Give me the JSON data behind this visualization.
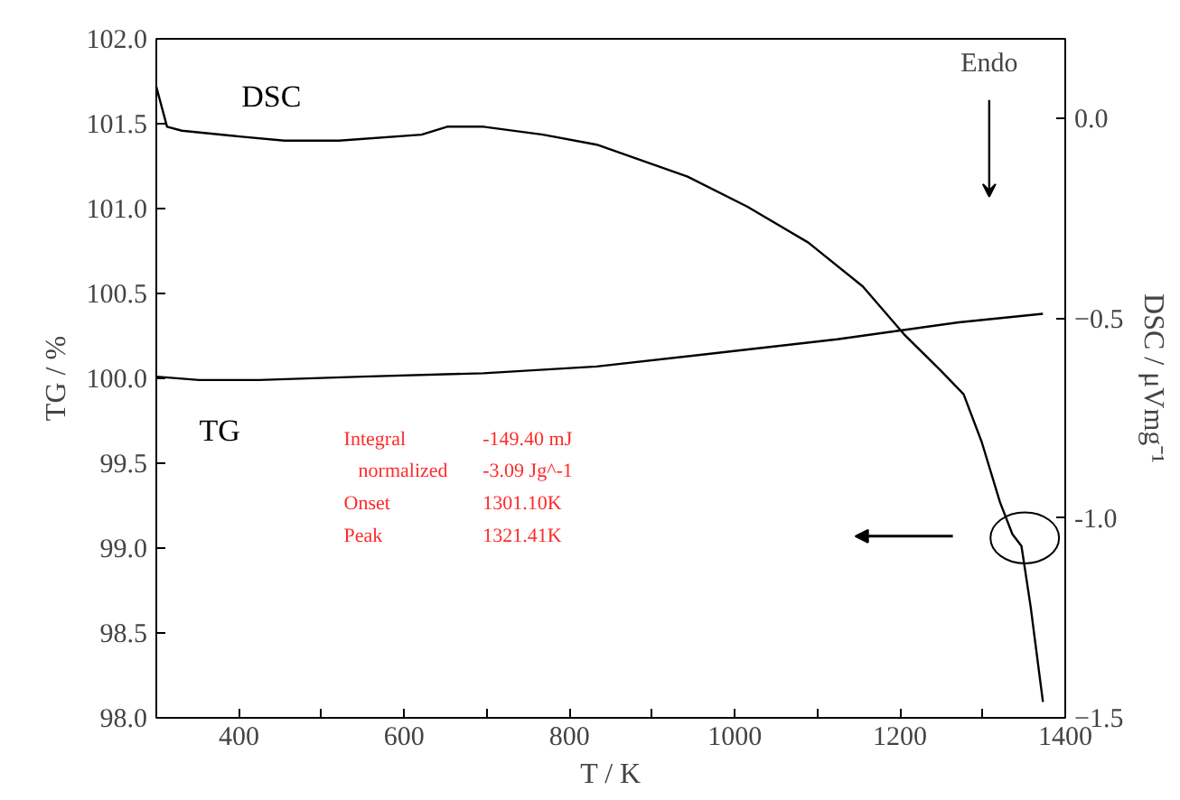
{
  "chart_data": {
    "type": "line",
    "xlabel": "T / K",
    "ylabel": "TG / %",
    "y2label": "DSC / μVmg⁻¹",
    "xlim": [
      300,
      1400
    ],
    "xticks": [
      400,
      {
        "value": 500,
        "label": null
      },
      600,
      {
        "value": 700,
        "label": null
      },
      800,
      {
        "value": 900,
        "label": null
      },
      1000,
      {
        "value": 1100,
        "label": null
      },
      1200,
      {
        "value": 1300,
        "label": null
      },
      1400
    ],
    "ylim": [
      98,
      102
    ],
    "yticks": [
      {
        "value": 98,
        "label": "98.0"
      },
      98.5,
      {
        "value": 99,
        "label": "99.0"
      },
      99.5,
      {
        "value": 100,
        "label": "100.0"
      },
      100.5,
      {
        "value": 101,
        "label": "101.0"
      },
      101.5,
      {
        "value": 102,
        "label": "102.0"
      }
    ],
    "y2lim": [
      -1.5,
      0.2
    ],
    "y2ticks": [
      {
        "value": 0,
        "label": "0.0"
      },
      -0.5,
      {
        "value": -1,
        "label": "-1.0"
      },
      -1.5
    ],
    "grid": false,
    "legend": false,
    "marker": "none",
    "line_style": "solid",
    "series": [
      {
        "name": "DSC",
        "color": "#000000",
        "axis": "y2",
        "x": [
          300,
          313,
          331,
          403,
          455,
          521,
          621,
          652,
          696,
          768,
          833,
          943,
          1015,
          1089,
          1155,
          1205,
          1249,
          1277,
          1299,
          1321,
          1336,
          1347,
          1358,
          1373
        ],
        "values": [
          0.08,
          -0.02,
          -0.03,
          -0.045,
          -0.055,
          -0.055,
          -0.04,
          -0.02,
          -0.02,
          -0.04,
          -0.065,
          -0.145,
          -0.22,
          -0.31,
          -0.42,
          -0.54,
          -0.63,
          -0.69,
          -0.81,
          -0.96,
          -1.04,
          -1.07,
          -1.22,
          -1.46
        ]
      },
      {
        "name": "TG",
        "color": "#000000",
        "x": [
          300,
          352,
          424,
          549,
          696,
          833,
          980,
          1124,
          1271,
          1373
        ],
        "values": [
          100.01,
          99.99,
          99.99,
          100.01,
          100.03,
          100.07,
          100.15,
          100.23,
          100.33,
          100.38
        ]
      }
    ],
    "annotations": [
      "Endo",
      "Integral",
      "-149.40 mJ",
      "normalized",
      "-3.09 Jg^-1",
      "Onset",
      "1301.10K",
      "Peak",
      "1321.41K"
    ]
  }
}
